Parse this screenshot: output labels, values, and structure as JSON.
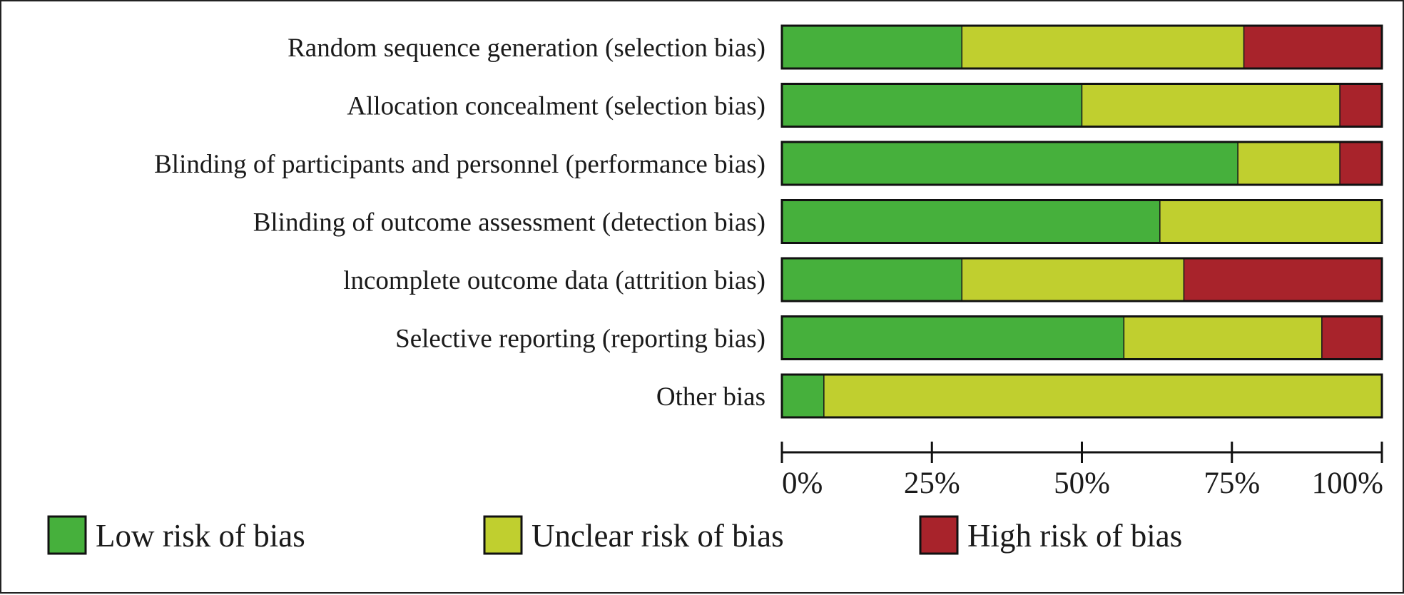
{
  "chart_data": {
    "type": "bar",
    "orientation": "horizontal",
    "stacked": true,
    "percent_stacked": true,
    "categories": [
      "Random sequence generation (selection bias)",
      "Allocation concealment (selection bias)",
      "Blinding of participants and personnel (performance bias)",
      "Blinding of outcome assessment (detection bias)",
      "lncomplete outcome data (attrition bias)",
      "Selective reporting (reporting bias)",
      "Other bias"
    ],
    "series": [
      {
        "name": "Low risk of bias",
        "color": "#46b03c",
        "values": [
          30,
          50,
          76,
          63,
          30,
          57,
          7
        ]
      },
      {
        "name": "Unclear risk of bias",
        "color": "#c0cf2f",
        "values": [
          47,
          43,
          17,
          37,
          37,
          33,
          93
        ]
      },
      {
        "name": "High risk of bias",
        "color": "#a8232b",
        "values": [
          23,
          7,
          7,
          0,
          33,
          10,
          0
        ]
      }
    ],
    "xlim": [
      0,
      100
    ],
    "xticks": [
      0,
      25,
      50,
      75,
      100
    ],
    "xtick_labels": [
      "0%",
      "25%",
      "50%",
      "75%",
      "100%"
    ],
    "grid": false,
    "legend_position": "bottom"
  }
}
